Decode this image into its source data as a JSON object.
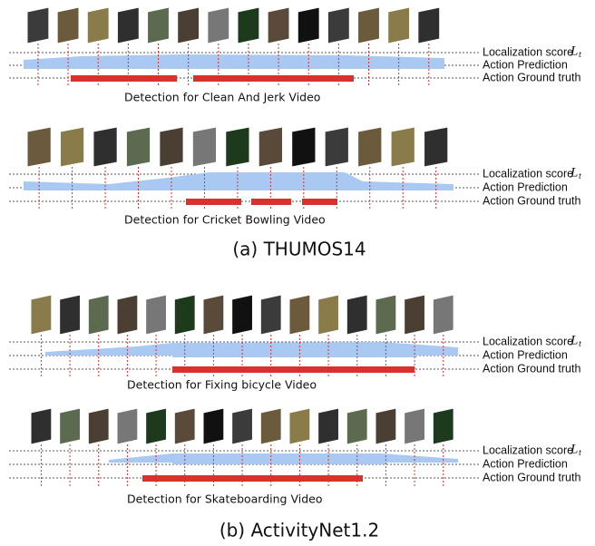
{
  "panels": [
    {
      "caption": "(a) THUMOS14",
      "videos": [
        {
          "title": "Detection for Clean And Jerk Video",
          "legend": [
            "Localization score",
            "L",
            "t",
            "Action Prediction",
            "Action Ground truth"
          ]
        },
        {
          "title": "Detection for Cricket Bowling Video",
          "legend": [
            "Localization score",
            "L",
            "t",
            "Action Prediction",
            "Action Ground truth"
          ]
        }
      ]
    },
    {
      "caption": "(b) ActivityNet1.2",
      "videos": [
        {
          "title": "Detection for Fixing bicycle Video",
          "legend": [
            "Localization score",
            "L",
            "t",
            "Action Prediction",
            "Action Ground truth"
          ]
        },
        {
          "title": "Detection for Skateboarding Video",
          "legend": [
            "Localization score",
            "L",
            "t",
            "Action Prediction",
            "Action Ground truth"
          ]
        }
      ]
    }
  ]
}
